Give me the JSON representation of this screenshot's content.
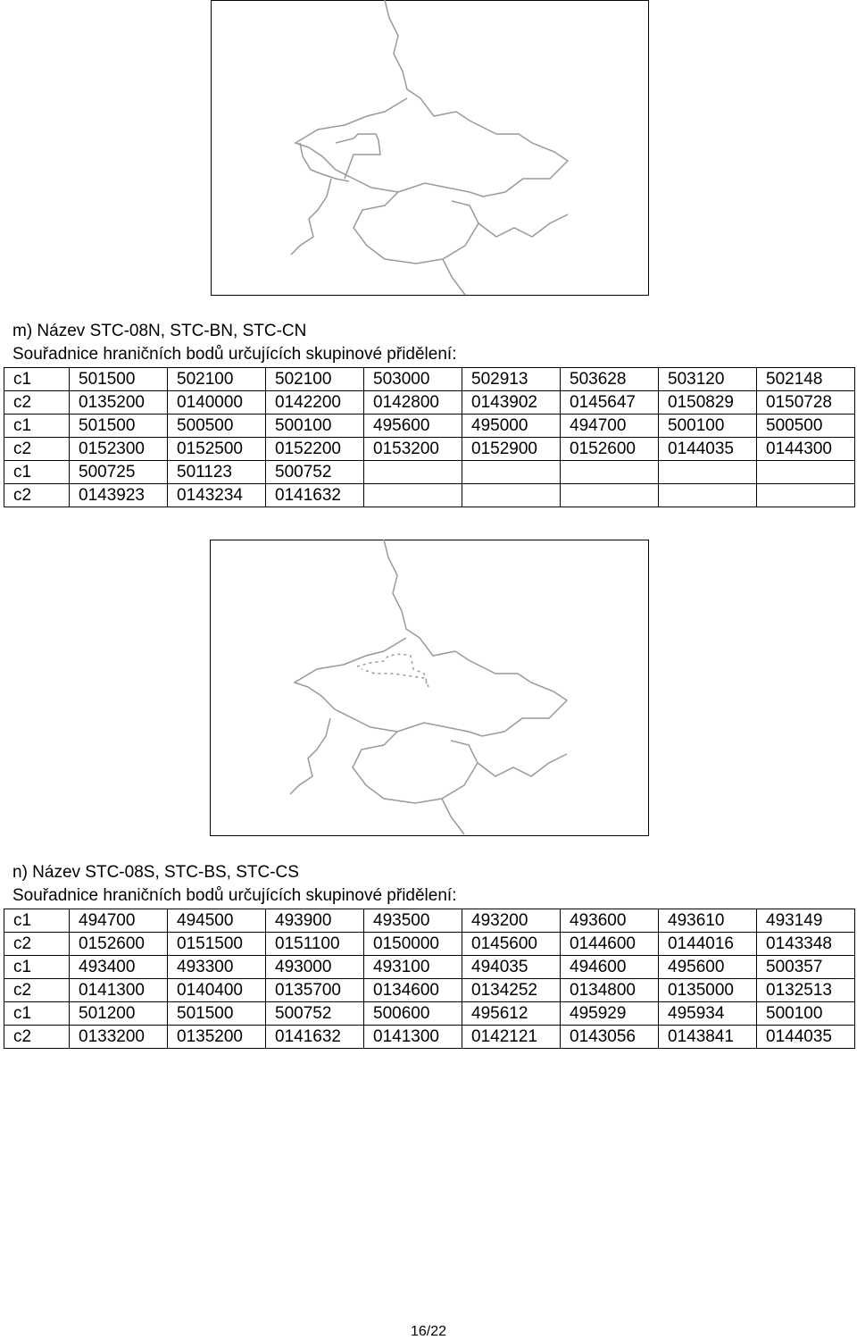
{
  "sections": [
    {
      "heading": "m) Název STC-08N, STC-BN, STC-CN",
      "subheading": "Souřadnice hraničních bodů určujících skupinové přidělení:",
      "table": {
        "rows": [
          [
            "c1",
            "501500",
            "502100",
            "502100",
            "503000",
            "502913",
            "503628",
            "503120",
            "502148"
          ],
          [
            "c2",
            "0135200",
            "0140000",
            "0142200",
            "0142800",
            "0143902",
            "0145647",
            "0150829",
            "0150728"
          ],
          [
            "c1",
            "501500",
            "500500",
            "500100",
            "495600",
            "495000",
            "494700",
            "500100",
            "500500"
          ],
          [
            "c2",
            "0152300",
            "0152500",
            "0152200",
            "0153200",
            "0152900",
            "0152600",
            "0144035",
            "0144300"
          ],
          [
            "c1",
            "500725",
            "501123",
            "500752"
          ],
          [
            "c2",
            "0143923",
            "0143234",
            "0141632"
          ]
        ]
      }
    },
    {
      "heading": "n) Název STC-08S, STC-BS, STC-CS",
      "subheading": "Souřadnice hraničních bodů určujících skupinové přidělení:",
      "table": {
        "rows": [
          [
            "c1",
            "494700",
            "494500",
            "493900",
            "493500",
            "493200",
            "493600",
            "493610",
            "493149"
          ],
          [
            "c2",
            "0152600",
            "0151500",
            "0151100",
            "0150000",
            "0145600",
            "0144600",
            "0144016",
            "0143348"
          ],
          [
            "c1",
            "493400",
            "493300",
            "493000",
            "493100",
            "494035",
            "494600",
            "495600",
            "500357"
          ],
          [
            "c2",
            "0141300",
            "0140400",
            "0135700",
            "0134600",
            "0134252",
            "0134800",
            "0135000",
            "0132513"
          ],
          [
            "c1",
            "501200",
            "501500",
            "500752",
            "500600",
            "495612",
            "495929",
            "495934",
            "500100"
          ],
          [
            "c2",
            "0133200",
            "0135200",
            "0141632",
            "0141300",
            "0142121",
            "0143056",
            "0143841",
            "0144035"
          ]
        ]
      }
    }
  ],
  "footer": {
    "page": "16/22"
  }
}
